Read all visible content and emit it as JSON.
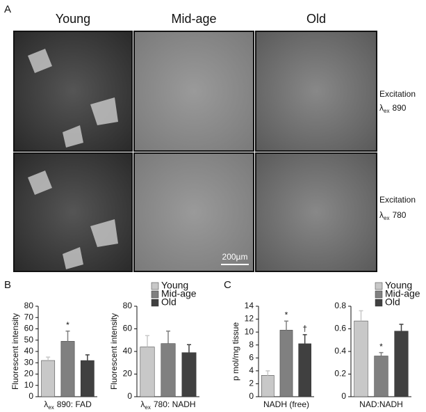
{
  "figure": {
    "panels": [
      "A",
      "B",
      "C"
    ],
    "columns": [
      "Young",
      "Mid-age",
      "Old"
    ],
    "rows": [
      {
        "title": "Excitation",
        "symbol": "λ",
        "sub": "ex",
        "value": "890"
      },
      {
        "title": "Excitation",
        "symbol": "λ",
        "sub": "ex",
        "value": "780"
      }
    ],
    "scale_bar": "200µm"
  },
  "chart_data": [
    {
      "type": "bar",
      "ylabel": "Fluorescent intensity",
      "xlabel": [
        "λ",
        "ex",
        "890: FAD"
      ],
      "values": [
        32,
        49,
        32
      ],
      "errors": [
        3,
        9,
        5
      ],
      "markers": [
        null,
        "*",
        null
      ],
      "colors": [
        "#c8c8c8",
        "#808080",
        "#404040"
      ],
      "ylim": [
        0,
        80
      ],
      "yticks": [
        0,
        10,
        20,
        30,
        40,
        50,
        60,
        70,
        80
      ]
    },
    {
      "type": "bar",
      "ylabel": "Fluorescent intensity",
      "xlabel": [
        "λ",
        "ex",
        "780: NADH"
      ],
      "categories": [
        "Young",
        "Mid-age",
        "Old"
      ],
      "values": [
        44,
        47,
        39
      ],
      "errors": [
        10,
        11,
        7
      ],
      "colors": [
        "#c8c8c8",
        "#808080",
        "#404040"
      ],
      "ylim": [
        0,
        80
      ],
      "yticks": [
        0,
        20,
        40,
        60,
        80
      ]
    },
    {
      "type": "bar",
      "ylabel": "p mol/mg tissue",
      "xlabel": [
        "",
        "",
        "NADH (free)"
      ],
      "values": [
        3.3,
        10.3,
        8.2
      ],
      "errors": [
        0.7,
        1.4,
        1.4
      ],
      "markers": [
        null,
        "*",
        "†"
      ],
      "colors": [
        "#c8c8c8",
        "#808080",
        "#404040"
      ],
      "ylim": [
        0,
        14
      ],
      "yticks": [
        0,
        2,
        4,
        6,
        8,
        10,
        12,
        14
      ]
    },
    {
      "type": "bar",
      "xlabel": [
        "",
        "",
        "NAD:NADH"
      ],
      "categories": [
        "Young",
        "Mid-age",
        "Old"
      ],
      "values": [
        0.67,
        0.36,
        0.58
      ],
      "errors": [
        0.09,
        0.03,
        0.06
      ],
      "markers": [
        null,
        "*",
        null
      ],
      "colors": [
        "#c8c8c8",
        "#808080",
        "#404040"
      ],
      "ylim": [
        0,
        0.8
      ],
      "yticks": [
        0,
        0.2,
        0.4,
        0.6,
        0.8
      ]
    }
  ]
}
